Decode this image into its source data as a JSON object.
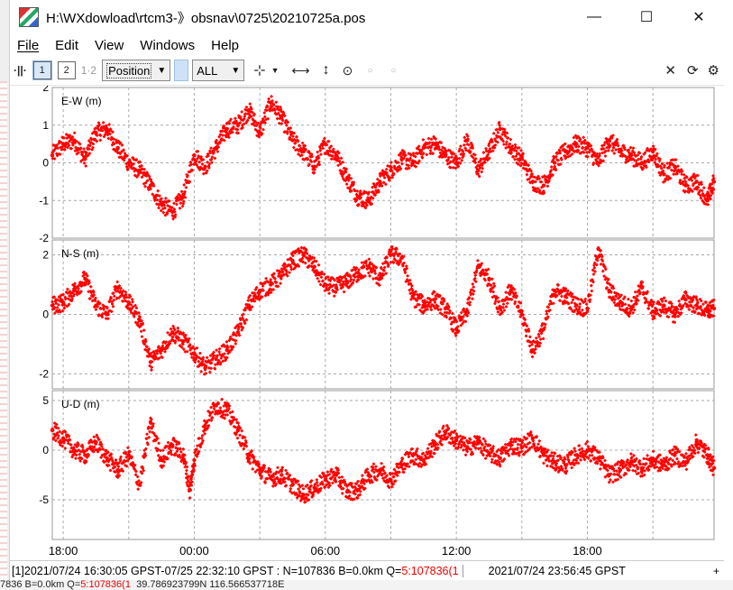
{
  "window": {
    "title": "H:\\WXdowload\\rtcm3-》obsnav\\0725\\20210725a.pos",
    "minimize": "—",
    "maximize": "☐",
    "close": "✕"
  },
  "menu": [
    "File",
    "Edit",
    "View",
    "Windows",
    "Help"
  ],
  "toolbar": {
    "btn1": "1",
    "btn2": "2",
    "btn12": "1·2",
    "plot_type": "Position",
    "sat_filter": "ALL"
  },
  "statusbar": {
    "left_prefix": "[1]2021/07/24 16:30:05 GPST-07/25 22:32:10 GPST : N=107836 B=0.0km Q=",
    "left_q": "5:107836(1",
    "right": "2021/07/24 23:56:45 GPST",
    "plus": "+"
  },
  "bottom_strip": {
    "prefix": "7836 B=0.0km Q=",
    "q": "5:107836(1",
    "suffix": "39.786923799N  116.566537718E"
  },
  "chart_data": [
    {
      "type": "scatter",
      "label": "E-W (m)",
      "ylim": [
        -2,
        2
      ],
      "yticks": [
        2,
        1,
        0,
        -1,
        -2
      ],
      "xlim": [
        -6.5,
        23.8
      ],
      "xticks_hours": [
        -6,
        -3,
        0,
        3,
        6,
        9,
        12,
        15,
        18,
        21
      ],
      "color": "#ff0000",
      "points": [
        [
          -6.5,
          0.2
        ],
        [
          -6,
          0.5
        ],
        [
          -5.5,
          0.6
        ],
        [
          -5,
          0.1
        ],
        [
          -4.5,
          0.8
        ],
        [
          -4,
          0.9
        ],
        [
          -3.5,
          0.4
        ],
        [
          -3,
          0.0
        ],
        [
          -2.5,
          -0.2
        ],
        [
          -2,
          -0.6
        ],
        [
          -1.5,
          -1.1
        ],
        [
          -1,
          -1.3
        ],
        [
          -0.5,
          -0.9
        ],
        [
          0,
          0.2
        ],
        [
          0.5,
          -0.1
        ],
        [
          1,
          0.4
        ],
        [
          1.5,
          0.9
        ],
        [
          2,
          1.0
        ],
        [
          2.5,
          1.4
        ],
        [
          3,
          0.8
        ],
        [
          3.5,
          1.6
        ],
        [
          4,
          1.2
        ],
        [
          4.5,
          0.6
        ],
        [
          5,
          0.3
        ],
        [
          5.5,
          -0.1
        ],
        [
          6,
          0.5
        ],
        [
          6.5,
          0.2
        ],
        [
          7,
          -0.4
        ],
        [
          7.5,
          -0.9
        ],
        [
          8,
          -1.0
        ],
        [
          8.5,
          -0.5
        ],
        [
          9,
          -0.2
        ],
        [
          9.5,
          0.1
        ],
        [
          10,
          0.0
        ],
        [
          10.5,
          0.4
        ],
        [
          11,
          0.5
        ],
        [
          11.5,
          0.2
        ],
        [
          12,
          0.0
        ],
        [
          12.5,
          0.6
        ],
        [
          13,
          -0.2
        ],
        [
          13.5,
          0.3
        ],
        [
          14,
          0.9
        ],
        [
          14.5,
          0.4
        ],
        [
          15,
          0.1
        ],
        [
          15.5,
          -0.5
        ],
        [
          16,
          -0.6
        ],
        [
          16.5,
          0.0
        ],
        [
          17,
          0.3
        ],
        [
          17.5,
          0.5
        ],
        [
          18,
          0.4
        ],
        [
          18.5,
          0.0
        ],
        [
          19,
          0.6
        ],
        [
          19.5,
          0.3
        ],
        [
          20,
          0.2
        ],
        [
          20.5,
          0.0
        ],
        [
          21,
          0.3
        ],
        [
          21.5,
          -0.3
        ],
        [
          22,
          -0.1
        ],
        [
          22.5,
          -0.6
        ],
        [
          23,
          -0.5
        ],
        [
          23.5,
          -1.0
        ],
        [
          23.8,
          -0.5
        ]
      ]
    },
    {
      "type": "scatter",
      "label": "N-S (m)",
      "ylim": [
        -2.5,
        2.5
      ],
      "yticks": [
        2,
        0,
        -2
      ],
      "xlim": [
        -6.5,
        23.8
      ],
      "xticks_hours": [
        -6,
        -3,
        0,
        3,
        6,
        9,
        12,
        15,
        18,
        21
      ],
      "color": "#ff0000",
      "points": [
        [
          -6.5,
          0.3
        ],
        [
          -6,
          0.4
        ],
        [
          -5.5,
          0.8
        ],
        [
          -5,
          1.2
        ],
        [
          -4.5,
          0.3
        ],
        [
          -4,
          0.0
        ],
        [
          -3.5,
          0.9
        ],
        [
          -3,
          0.4
        ],
        [
          -2.5,
          -0.2
        ],
        [
          -2,
          -1.6
        ],
        [
          -1.5,
          -1.2
        ],
        [
          -1,
          -0.6
        ],
        [
          -0.5,
          -0.9
        ],
        [
          0,
          -1.3
        ],
        [
          0.5,
          -1.8
        ],
        [
          1,
          -1.5
        ],
        [
          1.5,
          -1.2
        ],
        [
          2,
          -0.6
        ],
        [
          2.5,
          0.3
        ],
        [
          3,
          0.8
        ],
        [
          3.5,
          1.0
        ],
        [
          4,
          1.3
        ],
        [
          4.5,
          1.8
        ],
        [
          5,
          2.0
        ],
        [
          5.5,
          1.6
        ],
        [
          6,
          1.0
        ],
        [
          6.5,
          0.9
        ],
        [
          7,
          1.1
        ],
        [
          7.5,
          1.4
        ],
        [
          8,
          1.6
        ],
        [
          8.5,
          1.2
        ],
        [
          9,
          2.0
        ],
        [
          9.5,
          1.9
        ],
        [
          10,
          0.6
        ],
        [
          10.5,
          0.3
        ],
        [
          11,
          0.5
        ],
        [
          11.5,
          0.2
        ],
        [
          12,
          -0.5
        ],
        [
          12.5,
          0.1
        ],
        [
          13,
          1.6
        ],
        [
          13.5,
          1.2
        ],
        [
          14,
          0.2
        ],
        [
          14.5,
          0.8
        ],
        [
          15,
          0.0
        ],
        [
          15.5,
          -1.2
        ],
        [
          16,
          -0.5
        ],
        [
          16.5,
          0.8
        ],
        [
          17,
          0.6
        ],
        [
          17.5,
          0.3
        ],
        [
          18,
          0.2
        ],
        [
          18.5,
          2.2
        ],
        [
          19,
          0.8
        ],
        [
          19.5,
          0.4
        ],
        [
          20,
          0.2
        ],
        [
          20.5,
          0.9
        ],
        [
          21,
          0.1
        ],
        [
          21.5,
          0.3
        ],
        [
          22,
          0.0
        ],
        [
          22.5,
          0.5
        ],
        [
          23,
          0.3
        ],
        [
          23.5,
          0.1
        ],
        [
          23.8,
          0.2
        ]
      ]
    },
    {
      "type": "scatter",
      "label": "U-D (m)",
      "ylim": [
        -9,
        6
      ],
      "yticks": [
        5,
        0,
        -5
      ],
      "xlim": [
        -6.5,
        23.8
      ],
      "xticks_hours": [
        -6,
        -3,
        0,
        3,
        6,
        9,
        12,
        15,
        18,
        21
      ],
      "color": "#ff0000",
      "points": [
        [
          -6.5,
          2.0
        ],
        [
          -6,
          1.2
        ],
        [
          -5.5,
          0.0
        ],
        [
          -5,
          -0.5
        ],
        [
          -4.5,
          0.8
        ],
        [
          -4,
          -0.8
        ],
        [
          -3.5,
          -2.0
        ],
        [
          -3,
          -0.5
        ],
        [
          -2.5,
          -3.5
        ],
        [
          -2,
          2.8
        ],
        [
          -1.5,
          -1.0
        ],
        [
          -1,
          0.5
        ],
        [
          -0.5,
          -0.5
        ],
        [
          -0.2,
          -4.0
        ],
        [
          0,
          -1.0
        ],
        [
          0.5,
          2.5
        ],
        [
          1,
          4.5
        ],
        [
          1.5,
          4.0
        ],
        [
          2,
          2.0
        ],
        [
          2.5,
          -0.5
        ],
        [
          3,
          -2.0
        ],
        [
          3.5,
          -2.8
        ],
        [
          4,
          -2.5
        ],
        [
          4.5,
          -3.5
        ],
        [
          5,
          -4.5
        ],
        [
          5.5,
          -3.8
        ],
        [
          6,
          -3.0
        ],
        [
          6.5,
          -2.5
        ],
        [
          7,
          -4.2
        ],
        [
          7.5,
          -4.0
        ],
        [
          8,
          -2.5
        ],
        [
          8.5,
          -2.0
        ],
        [
          9,
          -3.0
        ],
        [
          9.5,
          -1.5
        ],
        [
          10,
          -0.5
        ],
        [
          10.5,
          -1.0
        ],
        [
          11,
          0.5
        ],
        [
          11.5,
          1.8
        ],
        [
          12,
          1.0
        ],
        [
          12.5,
          0.2
        ],
        [
          13,
          0.8
        ],
        [
          13.5,
          -0.3
        ],
        [
          14,
          -0.8
        ],
        [
          14.5,
          0.5
        ],
        [
          15,
          0.3
        ],
        [
          15.5,
          1.2
        ],
        [
          16,
          -0.5
        ],
        [
          16.5,
          -1.2
        ],
        [
          17,
          -1.5
        ],
        [
          17.5,
          -0.5
        ],
        [
          18,
          0.0
        ],
        [
          18.5,
          -0.8
        ],
        [
          19,
          -2.5
        ],
        [
          19.5,
          -2.0
        ],
        [
          20,
          -1.2
        ],
        [
          20.5,
          -1.8
        ],
        [
          21,
          -1.0
        ],
        [
          21.5,
          -1.5
        ],
        [
          22,
          -0.5
        ],
        [
          22.5,
          -1.2
        ],
        [
          23,
          0.8
        ],
        [
          23.5,
          -0.5
        ],
        [
          23.8,
          -1.8
        ]
      ]
    }
  ],
  "x_axis_labels": [
    "18:00",
    "00:00",
    "06:00",
    "12:00",
    "18:00"
  ]
}
